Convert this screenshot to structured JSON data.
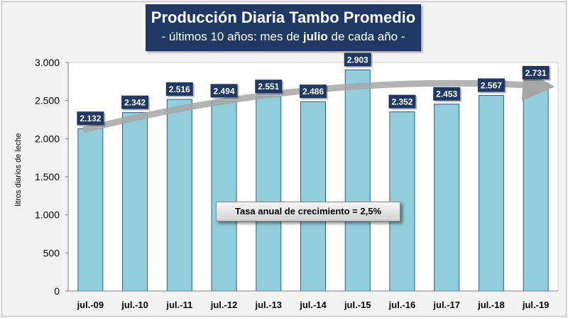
{
  "title": {
    "main": "Producción Diaria Tambo Promedio",
    "sub_pre": "- últimos 10 años: mes de ",
    "sub_bold": "julio",
    "sub_post": " de cada año -"
  },
  "annotation": "Tasa anual de crecimiento = 2,5%",
  "chart_data": {
    "type": "bar",
    "title": "Producción Diaria Tambo Promedio",
    "subtitle": "- últimos 10 años: mes de julio de cada año -",
    "xlabel": "",
    "ylabel": "litros diarios de leche",
    "categories": [
      "jul.-09",
      "jul.-10",
      "jul.-11",
      "jul.-12",
      "jul.-13",
      "jul.-14",
      "jul.-15",
      "jul.-16",
      "jul.-17",
      "jul.-18",
      "jul.-19"
    ],
    "values": [
      2132,
      2342,
      2516,
      2494,
      2551,
      2486,
      2903,
      2352,
      2453,
      2567,
      2731
    ],
    "value_labels": [
      "2.132",
      "2.342",
      "2.516",
      "2.494",
      "2.551",
      "2.486",
      "2.903",
      "2.352",
      "2.453",
      "2.567",
      "2.731"
    ],
    "ylim": [
      0,
      3000
    ],
    "yticks": [
      0,
      500,
      1000,
      1500,
      2000,
      2500,
      3000
    ],
    "ytick_labels": [
      "0",
      "500",
      "1.000",
      "1.500",
      "2.000",
      "2.500",
      "3.000"
    ],
    "grid": false,
    "trend_annotation": "Tasa anual de crecimiento = 2,5%",
    "colors": {
      "bar_fill": "#92cddc",
      "bar_stroke": "#2e5f8a",
      "label_bg": "#1f3864",
      "label_text": "#ffffff",
      "trend_arrow": "#a6a6a6"
    }
  }
}
